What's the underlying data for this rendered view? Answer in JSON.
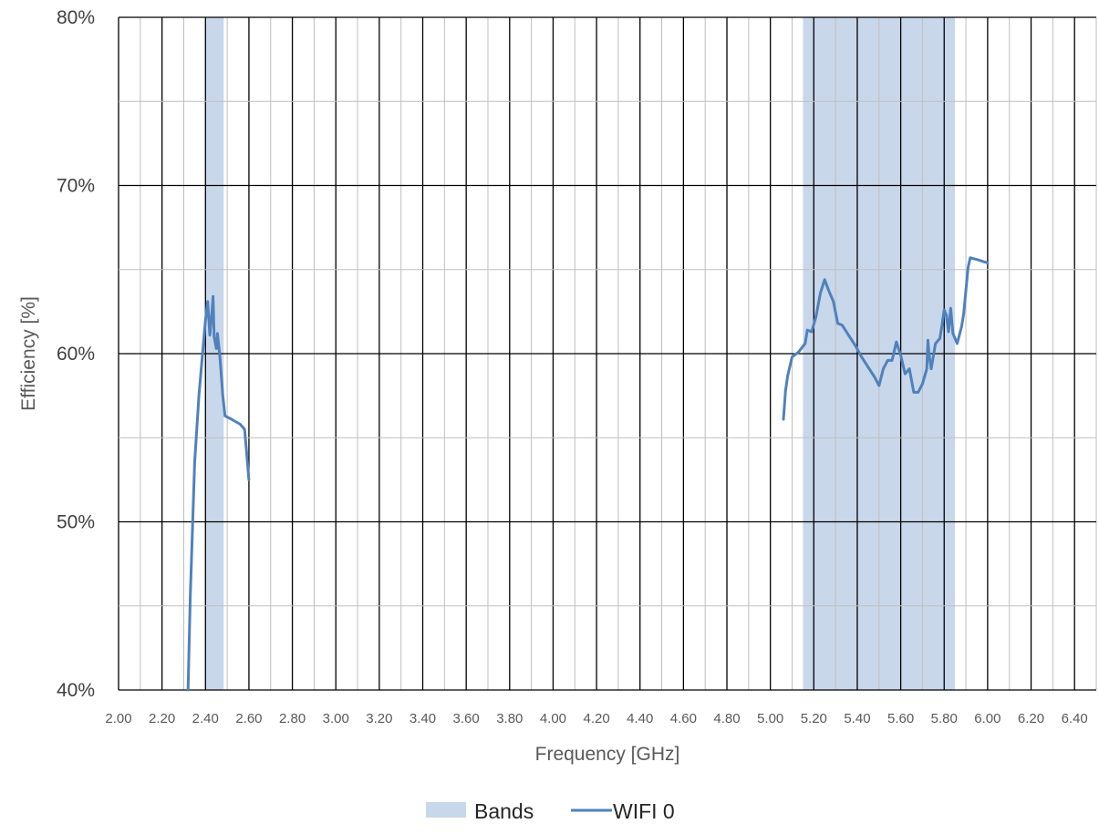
{
  "chart_data": {
    "type": "line",
    "title": "",
    "xlabel": "Frequency [GHz]",
    "ylabel": "Efficiency [%]",
    "xlim": [
      2.0,
      6.5
    ],
    "ylim": [
      40,
      80
    ],
    "x_major_step": 0.2,
    "x_minor_step": 0.1,
    "y_major_step": 10,
    "y_minor_step": 5,
    "x_ticks": [
      "2.00",
      "2.20",
      "2.40",
      "2.60",
      "2.80",
      "3.00",
      "3.20",
      "3.40",
      "3.60",
      "3.80",
      "4.00",
      "4.20",
      "4.40",
      "4.60",
      "4.80",
      "5.00",
      "5.20",
      "5.40",
      "5.60",
      "5.80",
      "6.00",
      "6.20",
      "6.40"
    ],
    "y_ticks": [
      "40%",
      "50%",
      "60%",
      "70%",
      "80%"
    ],
    "grid": true,
    "legend_position": "bottom-center",
    "bands": {
      "name": "Bands",
      "color": "#c9d7ea",
      "ranges": [
        [
          2.4,
          2.484
        ],
        [
          5.15,
          5.85
        ]
      ]
    },
    "series": [
      {
        "name": "WIFI 0",
        "color": "#4f81bd",
        "segments": [
          [
            [
              2.32,
              40.0
            ],
            [
              2.33,
              45.5
            ],
            [
              2.35,
              53.5
            ],
            [
              2.37,
              57.5
            ],
            [
              2.39,
              60.5
            ],
            [
              2.4,
              62.0
            ],
            [
              2.41,
              63.1
            ],
            [
              2.42,
              61.1
            ],
            [
              2.43,
              62.5
            ],
            [
              2.435,
              63.4
            ],
            [
              2.44,
              61.0
            ],
            [
              2.45,
              60.3
            ],
            [
              2.455,
              61.2
            ],
            [
              2.465,
              60.0
            ],
            [
              2.47,
              59.2
            ],
            [
              2.48,
              57.5
            ],
            [
              2.49,
              56.3
            ],
            [
              2.52,
              56.1
            ],
            [
              2.56,
              55.8
            ],
            [
              2.58,
              55.5
            ],
            [
              2.59,
              54.0
            ],
            [
              2.6,
              52.5
            ]
          ],
          [
            [
              5.06,
              56.1
            ],
            [
              5.07,
              57.8
            ],
            [
              5.08,
              58.7
            ],
            [
              5.1,
              59.8
            ],
            [
              5.13,
              60.1
            ],
            [
              5.16,
              60.6
            ],
            [
              5.17,
              61.4
            ],
            [
              5.19,
              61.3
            ],
            [
              5.21,
              62.2
            ],
            [
              5.23,
              63.6
            ],
            [
              5.25,
              64.4
            ],
            [
              5.27,
              63.7
            ],
            [
              5.29,
              63.1
            ],
            [
              5.31,
              61.8
            ],
            [
              5.33,
              61.7
            ],
            [
              5.36,
              61.1
            ],
            [
              5.39,
              60.5
            ],
            [
              5.42,
              59.8
            ],
            [
              5.45,
              59.2
            ],
            [
              5.48,
              58.6
            ],
            [
              5.5,
              58.1
            ],
            [
              5.52,
              59.1
            ],
            [
              5.54,
              59.6
            ],
            [
              5.56,
              59.6
            ],
            [
              5.58,
              60.7
            ],
            [
              5.6,
              59.9
            ],
            [
              5.62,
              58.8
            ],
            [
              5.64,
              59.1
            ],
            [
              5.66,
              57.7
            ],
            [
              5.68,
              57.7
            ],
            [
              5.7,
              58.2
            ],
            [
              5.72,
              59.1
            ],
            [
              5.725,
              60.8
            ],
            [
              5.73,
              60.0
            ],
            [
              5.74,
              59.1
            ],
            [
              5.76,
              60.6
            ],
            [
              5.78,
              60.9
            ],
            [
              5.79,
              61.7
            ],
            [
              5.8,
              62.6
            ],
            [
              5.81,
              62.3
            ],
            [
              5.82,
              61.3
            ],
            [
              5.83,
              62.7
            ],
            [
              5.84,
              61.2
            ],
            [
              5.86,
              60.6
            ],
            [
              5.88,
              61.6
            ],
            [
              5.89,
              62.4
            ],
            [
              5.91,
              65.1
            ],
            [
              5.92,
              65.7
            ],
            [
              5.95,
              65.6
            ],
            [
              6.0,
              65.4
            ]
          ]
        ]
      }
    ]
  }
}
